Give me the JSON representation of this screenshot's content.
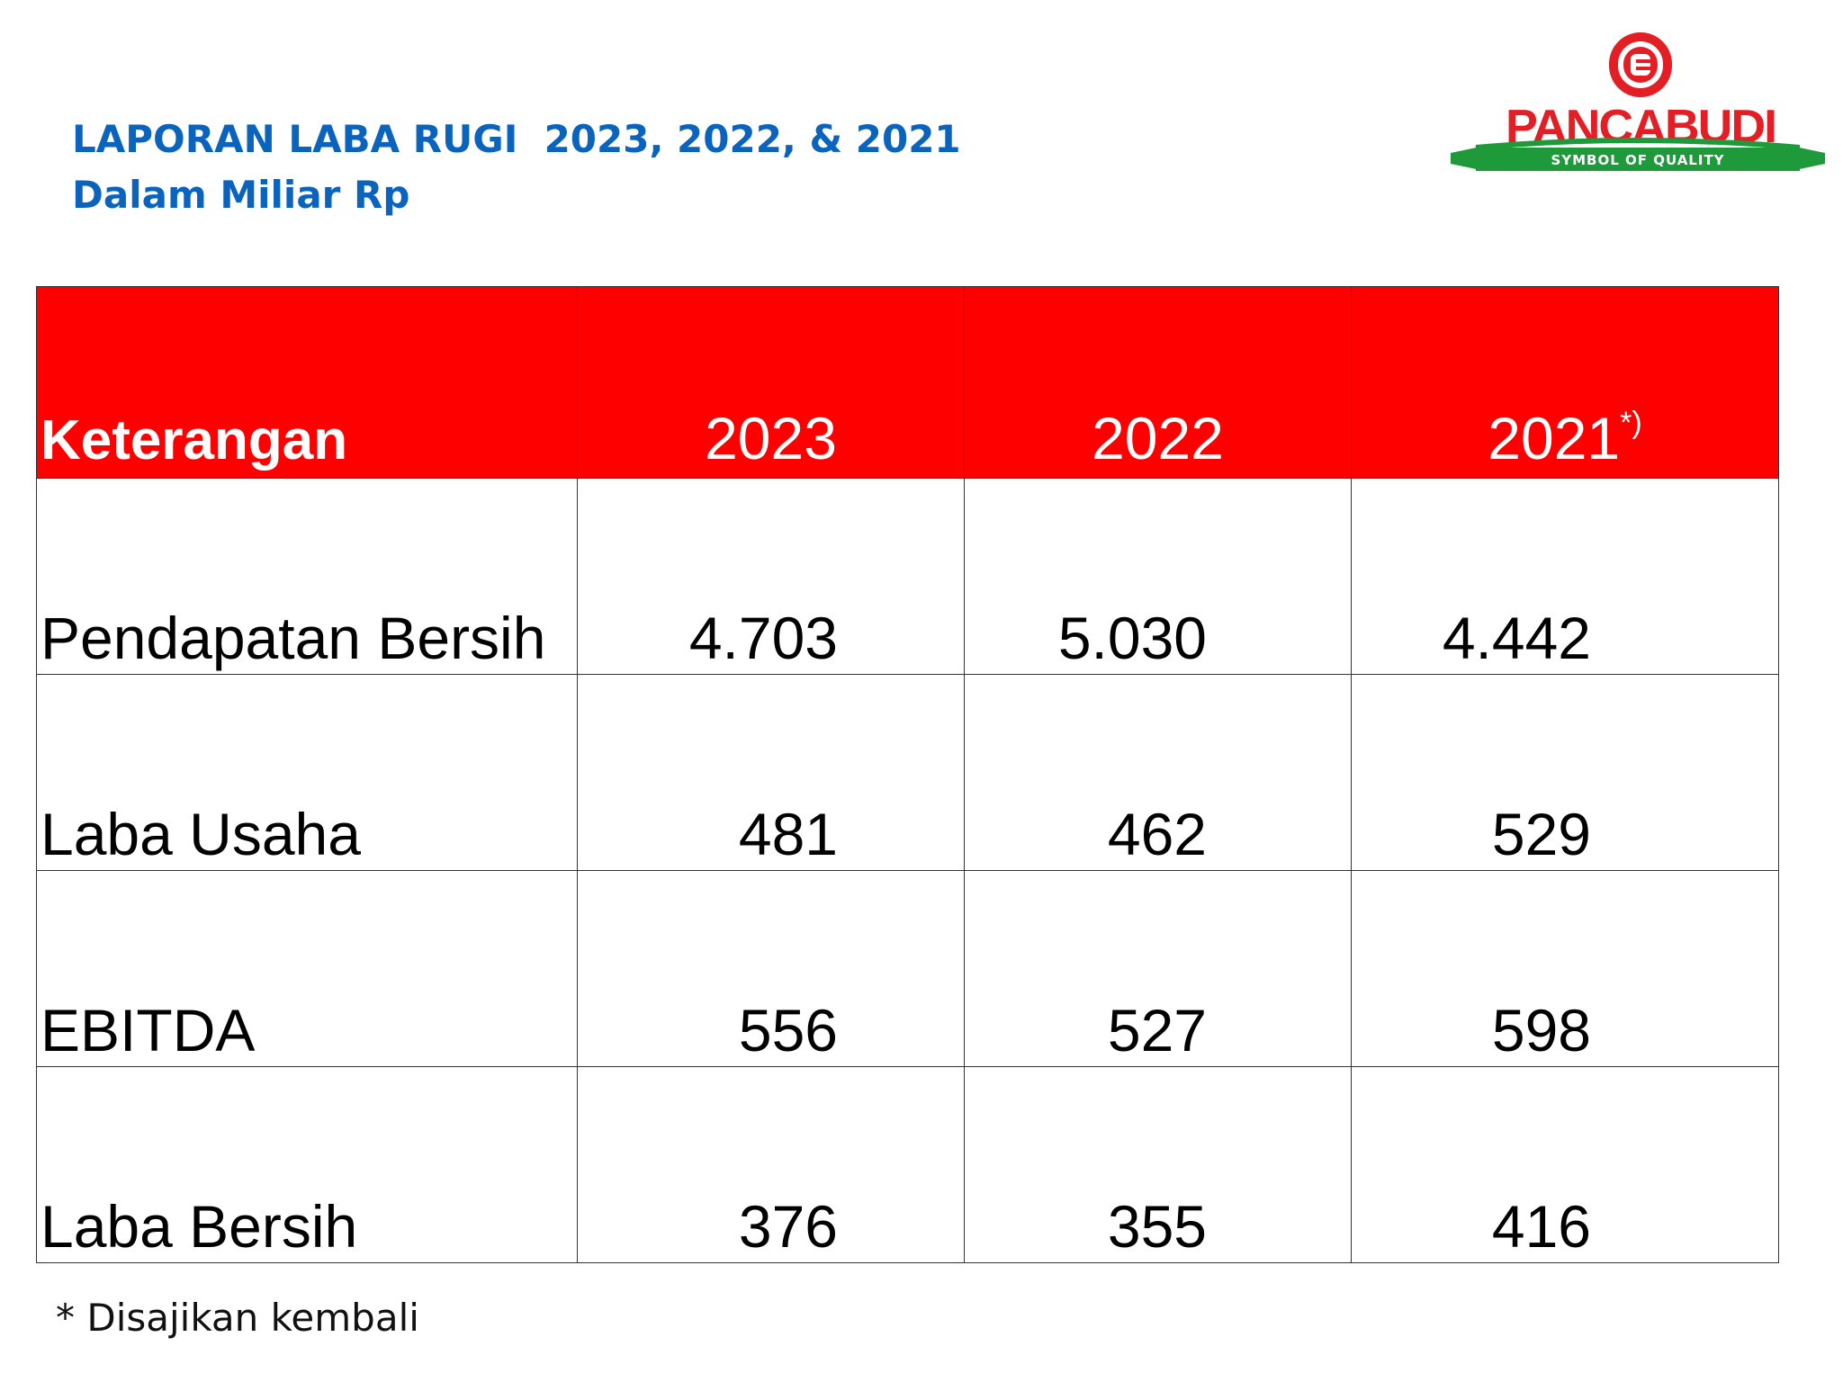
{
  "title": {
    "line1": "LAPORAN LABA RUGI  2023, 2022, & 2021",
    "line2": "Dalam Miliar Rp"
  },
  "logo": {
    "brand": "PANCABUDI",
    "tagline": "SYMBOL OF QUALITY",
    "colors": {
      "red": "#e31e24",
      "green": "#1e9a3a"
    }
  },
  "table": {
    "header": {
      "label": "Keterangan",
      "years": [
        "2023",
        "2022",
        "2021"
      ],
      "note_mark": "*)"
    },
    "rows": [
      {
        "label": "Pendapatan Bersih",
        "values": [
          "4.703",
          "5.030",
          "4.442"
        ]
      },
      {
        "label": "Laba Usaha",
        "values": [
          "481",
          "462",
          "529"
        ]
      },
      {
        "label": "EBITDA",
        "values": [
          "556",
          "527",
          "598"
        ]
      },
      {
        "label": "Laba Bersih",
        "values": [
          "376",
          "355",
          "416"
        ]
      }
    ],
    "colors": {
      "header_bg": "#ff0000",
      "header_text": "#ffffff"
    }
  },
  "footnote": "*  Disajikan kembali"
}
